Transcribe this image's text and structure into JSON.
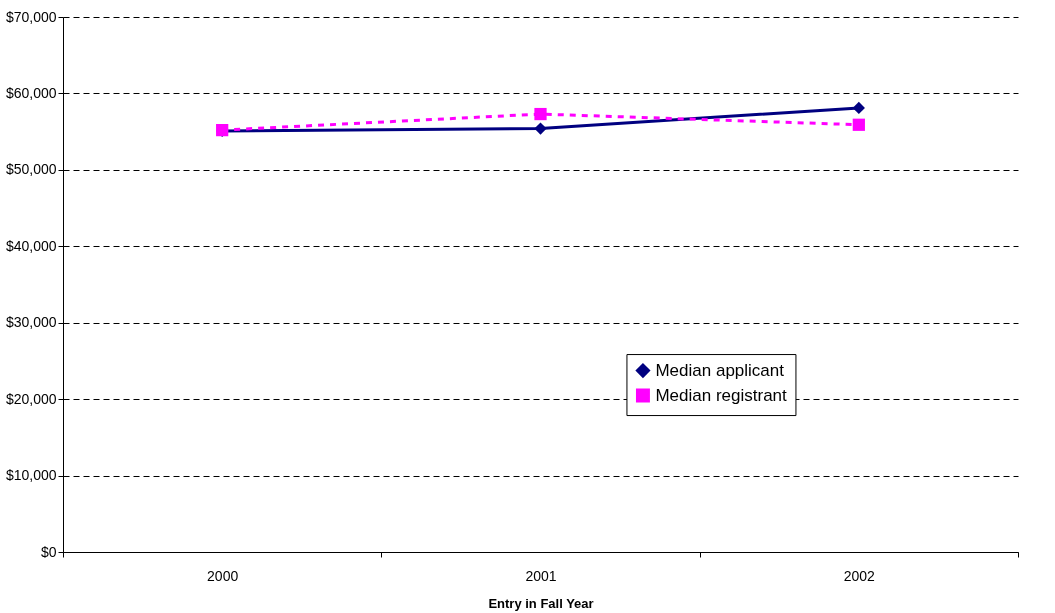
{
  "chart_data": {
    "type": "line",
    "xlabel": "Entry in Fall Year",
    "categories": [
      "2000",
      "2001",
      "2002"
    ],
    "series": [
      {
        "name": "Median applicant",
        "color": "#000080",
        "values": [
          55100,
          55400,
          58100
        ],
        "marker": "diamond",
        "line_style": "solid"
      },
      {
        "name": "Median registrant",
        "color": "#ff00ff",
        "values": [
          55200,
          57300,
          55900
        ],
        "marker": "square",
        "line_style": "dashed"
      }
    ],
    "ylim": [
      0,
      70000
    ],
    "yticks": [
      {
        "value": 0,
        "label": "$0"
      },
      {
        "value": 10000,
        "label": "$10,000"
      },
      {
        "value": 20000,
        "label": "$20,000"
      },
      {
        "value": 30000,
        "label": "$30,000"
      },
      {
        "value": 40000,
        "label": "$40,000"
      },
      {
        "value": 50000,
        "label": "$50,000"
      },
      {
        "value": 60000,
        "label": "$60,000"
      },
      {
        "value": 70000,
        "label": "$70,000"
      }
    ],
    "grid": "y",
    "legend": "center right"
  }
}
